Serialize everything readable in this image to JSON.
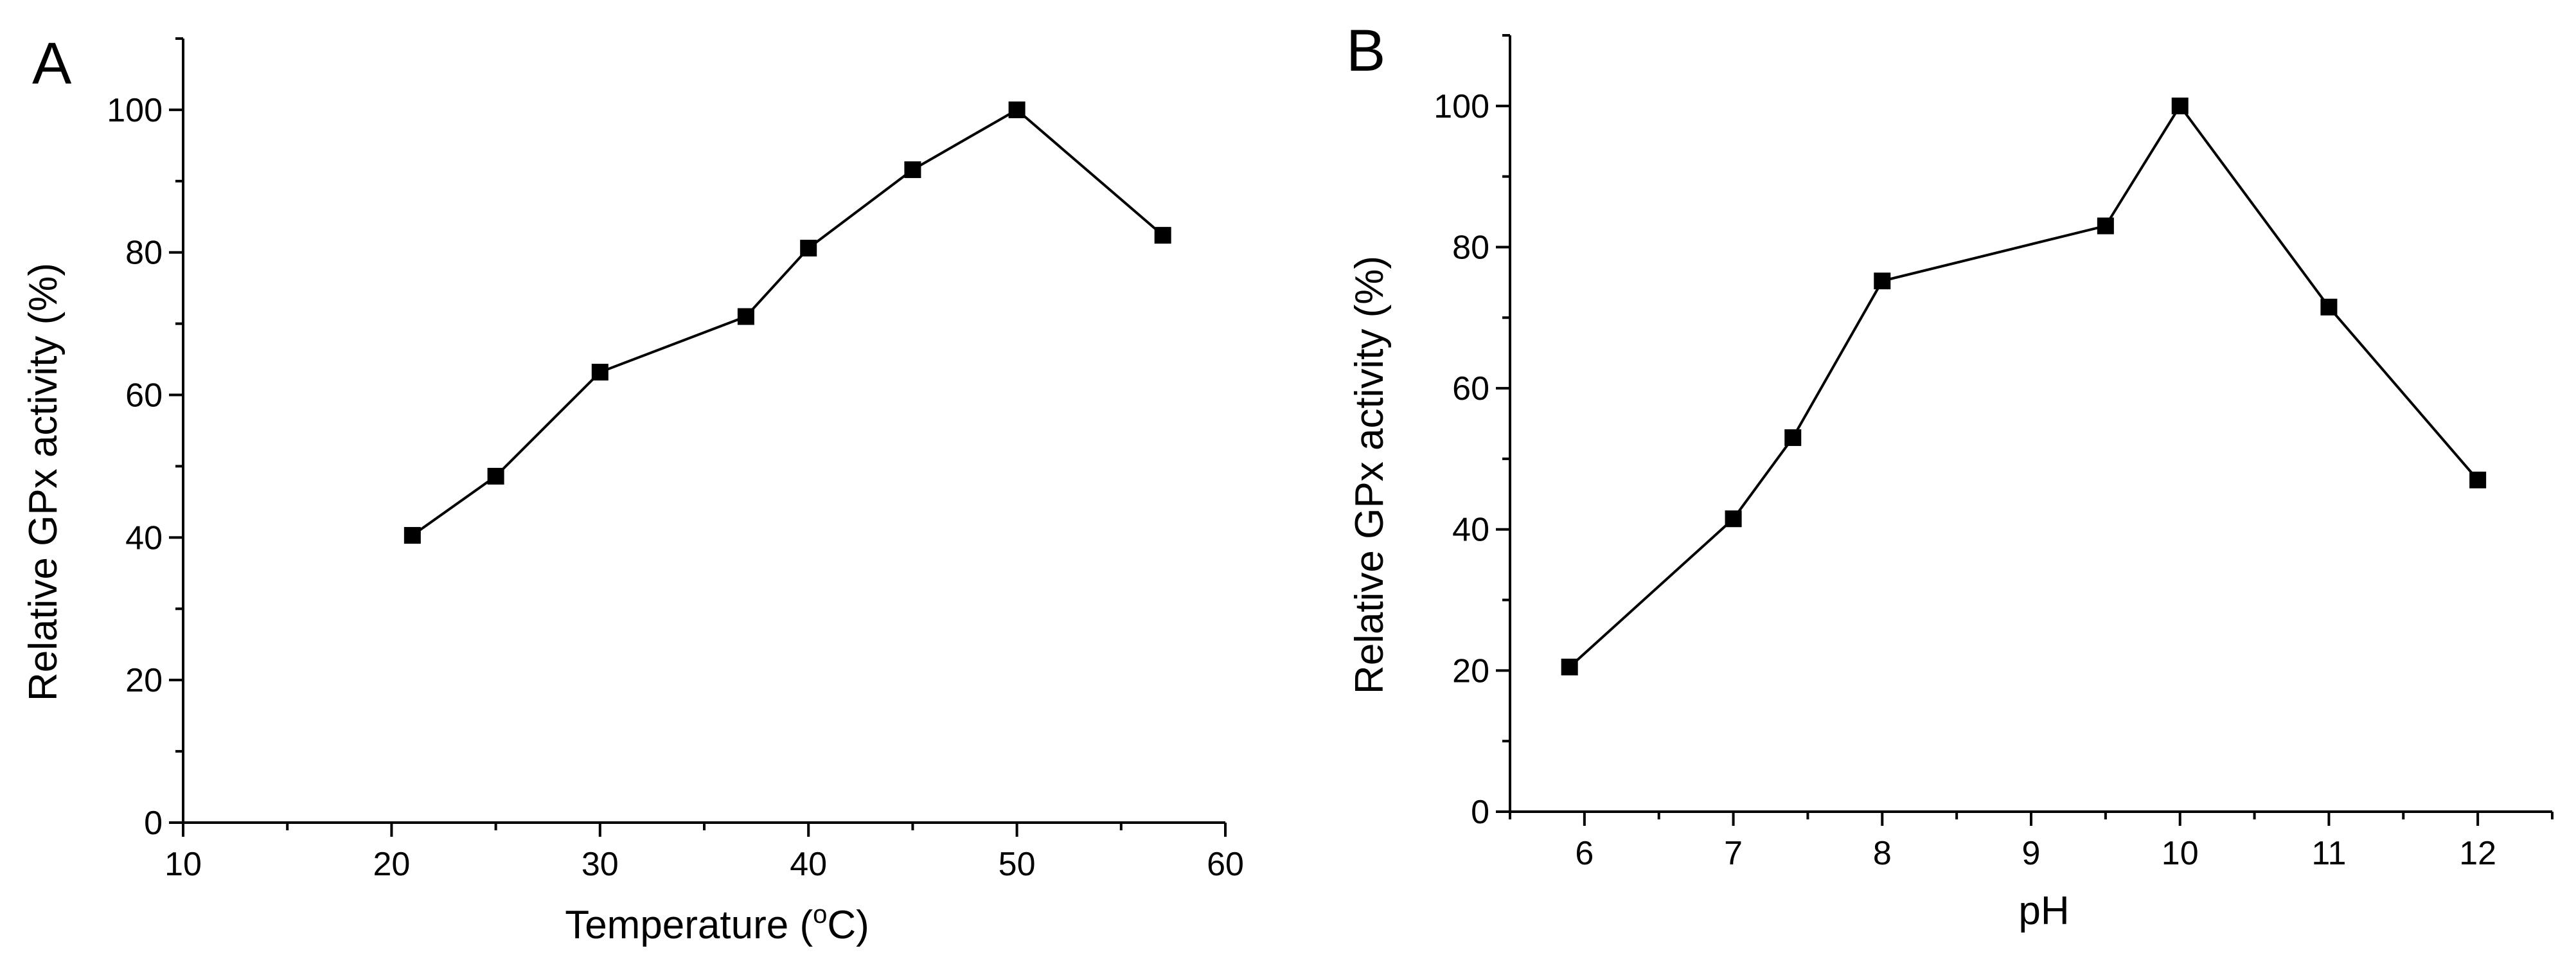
{
  "chart_data": [
    {
      "panel": "A",
      "type": "line",
      "title": "",
      "xlabel": "Temperature (°C)",
      "ylabel": "Relative GPx activity (%)",
      "xlim": [
        10,
        60
      ],
      "ylim": [
        0,
        110
      ],
      "xticks": [
        10,
        20,
        30,
        40,
        50,
        60
      ],
      "yticks": [
        0,
        20,
        40,
        60,
        80,
        100
      ],
      "x": [
        21,
        25,
        30,
        37,
        40,
        45,
        50,
        57
      ],
      "y": [
        40.3,
        48.6,
        63.2,
        71.0,
        80.6,
        91.6,
        100,
        82.4
      ],
      "grid": false,
      "marker": "square",
      "color": "#000000"
    },
    {
      "panel": "B",
      "type": "line",
      "title": "",
      "xlabel": "pH",
      "ylabel": "Relative GPx activity (%)",
      "xlim": [
        5.5,
        12.5
      ],
      "ylim": [
        0,
        110
      ],
      "xticks": [
        6,
        7,
        8,
        9,
        10,
        11,
        12
      ],
      "yticks": [
        0,
        20,
        40,
        60,
        80,
        100
      ],
      "x": [
        5.9,
        7,
        7.4,
        8,
        9.5,
        10,
        11,
        12
      ],
      "y": [
        20.5,
        41.5,
        53.0,
        75.2,
        83.0,
        100,
        71.5,
        47.0
      ],
      "grid": false,
      "marker": "square",
      "color": "#000000"
    }
  ]
}
